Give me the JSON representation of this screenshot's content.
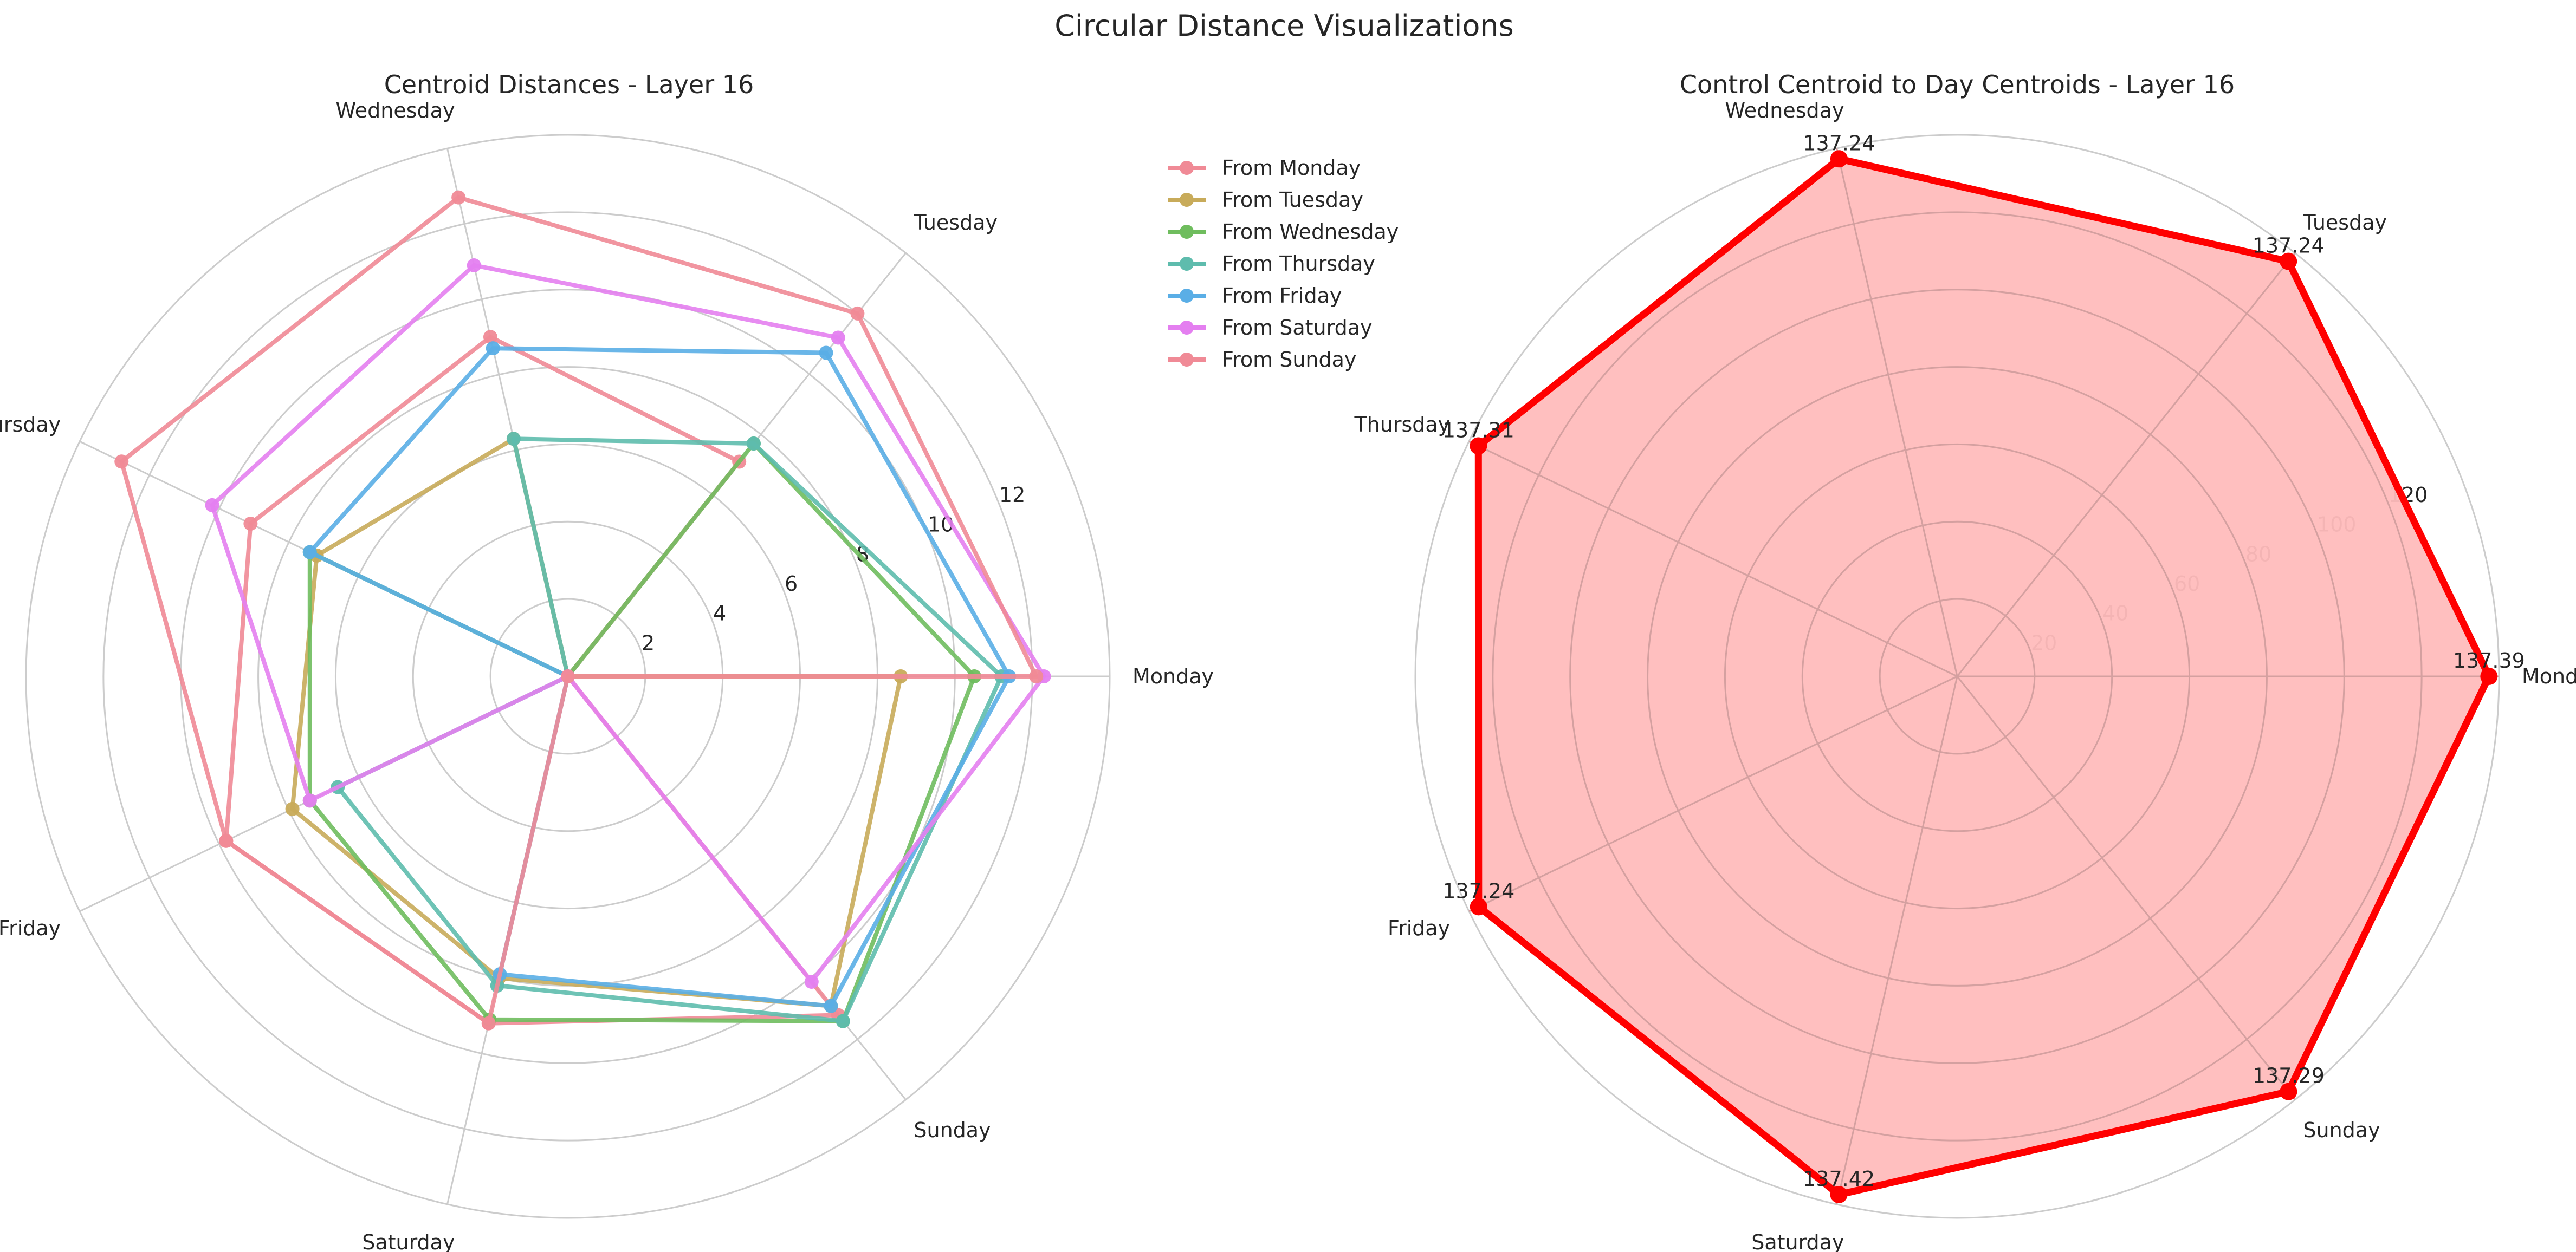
{
  "figure": {
    "title": "Circular Distance Visualizations"
  },
  "colors": {
    "Monday": "#f08a96",
    "Tuesday": "#c8ab5a",
    "Wednesday": "#6fbd5e",
    "Thursday": "#5ebcad",
    "Friday": "#5aaee6",
    "Saturday": "#e47ff0",
    "Sunday": "#f08a96",
    "control_line": "#ff0000",
    "control_fill": "#ffbcbc",
    "grid": "#cccccc"
  },
  "chart_data": [
    {
      "type": "radar",
      "title": "Centroid Distances - Layer 16",
      "categories": [
        "Monday",
        "Tuesday",
        "Wednesday",
        "Thursday",
        "Friday",
        "Saturday",
        "Sunday"
      ],
      "rticks": [
        2,
        4,
        6,
        8,
        10,
        12
      ],
      "rlim": [
        0,
        14
      ],
      "grid": true,
      "legend_position": "upper-right-outside",
      "series": [
        {
          "name": "From Monday",
          "values": [
            0,
            7.1,
            9.0,
            9.1,
            9.8,
            9.2,
            11.2
          ]
        },
        {
          "name": "From Tuesday",
          "values": [
            8.6,
            0,
            6.3,
            7.2,
            7.9,
            8.0,
            10.9
          ]
        },
        {
          "name": "From Wednesday",
          "values": [
            10.5,
            7.7,
            0,
            7.4,
            7.4,
            9.1,
            11.4
          ]
        },
        {
          "name": "From Thursday",
          "values": [
            11.2,
            7.7,
            6.3,
            0,
            6.6,
            8.2,
            11.4
          ]
        },
        {
          "name": "From Friday",
          "values": [
            11.4,
            10.7,
            8.7,
            7.4,
            0,
            7.9,
            10.9
          ]
        },
        {
          "name": "From Saturday",
          "values": [
            12.3,
            11.2,
            10.9,
            10.2,
            7.4,
            0,
            10.1
          ]
        },
        {
          "name": "From Sunday",
          "values": [
            12.1,
            12.0,
            12.7,
            12.8,
            9.8,
            9.2,
            0
          ]
        }
      ]
    },
    {
      "type": "radar",
      "title": "Control Centroid to Day Centroids - Layer 16",
      "categories": [
        "Monday",
        "Tuesday",
        "Wednesday",
        "Thursday",
        "Friday",
        "Saturday",
        "Sunday"
      ],
      "rticks": [
        20,
        40,
        60,
        80,
        100,
        120
      ],
      "rlim": [
        0,
        140
      ],
      "grid": true,
      "values": [
        137.39,
        137.24,
        137.24,
        137.31,
        137.24,
        137.42,
        137.29
      ],
      "value_labels": [
        "137.39",
        "137.24",
        "137.24",
        "137.31",
        "137.24",
        "137.42",
        "137.29"
      ]
    }
  ]
}
